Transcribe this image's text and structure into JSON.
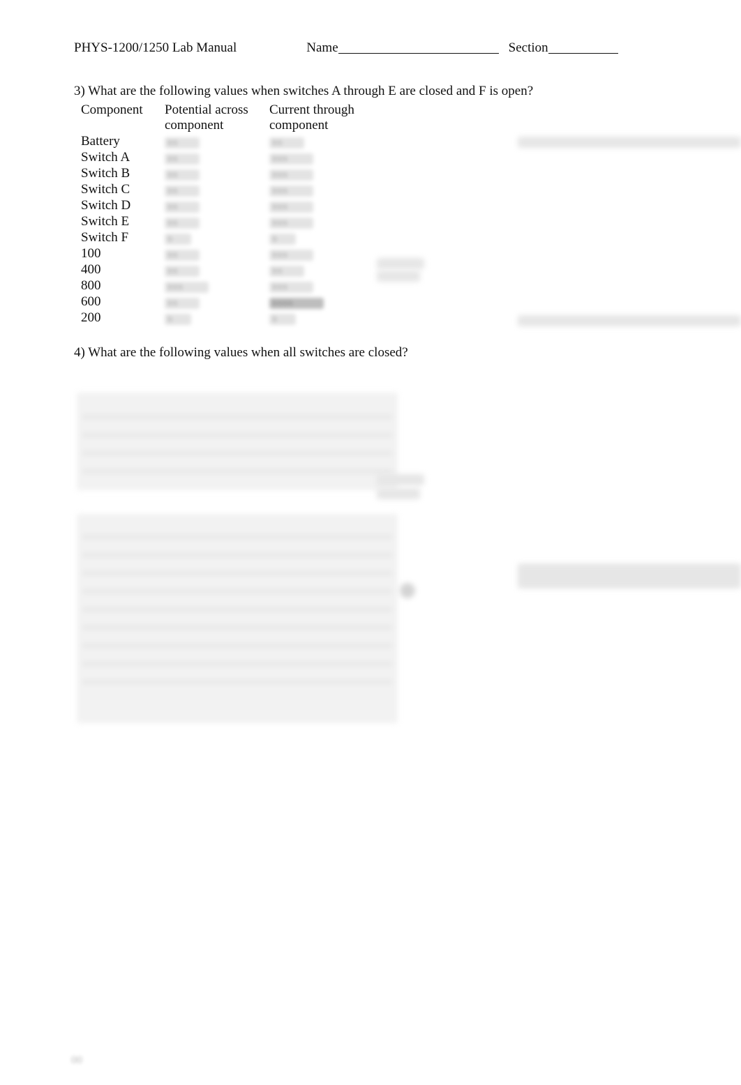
{
  "header": {
    "course": "PHYS-1200/1250 Lab Manual",
    "name_label": "Name",
    "section_label": "Section"
  },
  "question3": {
    "prompt": "3) What are the following values when switches A through E are closed and F is open?",
    "columns": [
      "Component",
      "Potential across component",
      "Current through component"
    ],
    "rows": [
      "Battery",
      "Switch A",
      "Switch B",
      "Switch C",
      "Switch D",
      "Switch E",
      "Switch F",
      "100",
      "400",
      "800",
      "600",
      "200"
    ]
  },
  "question4": {
    "prompt": "4) What are the following values when all switches are closed?"
  },
  "style": {
    "page_bg": "#ffffff",
    "text_color": "#111111",
    "font_family": "Times New Roman",
    "base_font_pt": 14,
    "blur_placeholder_color": "#e3e3e3",
    "blur_block_color": "#f2f2f2",
    "line_color": "#111111"
  }
}
